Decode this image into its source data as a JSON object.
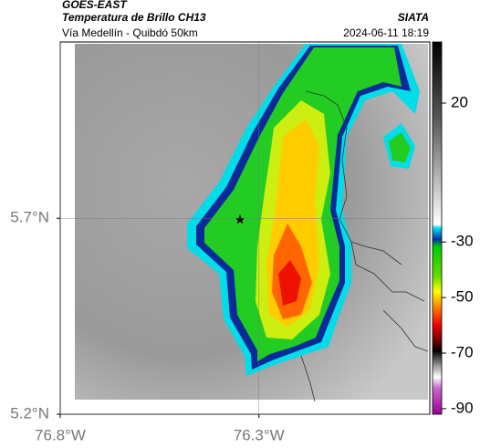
{
  "header": {
    "product": "GOES-EAST",
    "title": "Temperatura de Brillo CH13",
    "subtitle": "Vía Medellín - Quibdó 50km",
    "source": "SIATA",
    "datetime": "2024-06-11 18:19"
  },
  "map": {
    "lonlim": [
      -76.8,
      -75.87
    ],
    "latlim": [
      5.2,
      6.15
    ],
    "lonticks": [
      {
        "value": -76.8,
        "label": "76.8°W"
      },
      {
        "value": -76.3,
        "label": "76.3°W"
      }
    ],
    "latticks": [
      {
        "value": 5.2,
        "label": "5.2°N"
      },
      {
        "value": 5.7,
        "label": "5.7°N"
      }
    ],
    "grid": true
  },
  "colorbar": {
    "lim": [
      -92,
      42
    ],
    "ticks": [
      20,
      -30,
      -50,
      -70,
      -90
    ]
  }
}
